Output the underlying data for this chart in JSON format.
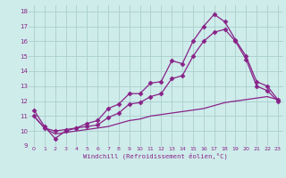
{
  "background_color": "#ceecea",
  "grid_color": "#aacfcd",
  "line_color": "#882288",
  "xlim": [
    -0.5,
    23.5
  ],
  "ylim": [
    9,
    18.4
  ],
  "xticks": [
    0,
    1,
    2,
    3,
    4,
    5,
    6,
    7,
    8,
    9,
    10,
    11,
    12,
    13,
    14,
    15,
    16,
    17,
    18,
    19,
    20,
    21,
    22,
    23
  ],
  "yticks": [
    9,
    10,
    11,
    12,
    13,
    14,
    15,
    16,
    17,
    18
  ],
  "xlabel": "Windchill (Refroidissement éolien,°C)",
  "line1_x": [
    0,
    1,
    2,
    3,
    4,
    5,
    6,
    7,
    8,
    9,
    10,
    11,
    12,
    13,
    14,
    15,
    16,
    17,
    18,
    19,
    20,
    21,
    22,
    23
  ],
  "line1_y": [
    11.4,
    10.3,
    9.5,
    10.0,
    10.2,
    10.5,
    10.7,
    11.5,
    11.8,
    12.5,
    12.5,
    13.2,
    13.3,
    14.7,
    14.5,
    16.0,
    17.0,
    17.8,
    17.3,
    16.1,
    15.0,
    13.3,
    13.0,
    12.1
  ],
  "line2_x": [
    0,
    1,
    2,
    3,
    4,
    5,
    6,
    7,
    8,
    9,
    10,
    11,
    12,
    13,
    14,
    15,
    16,
    17,
    18,
    19,
    20,
    21,
    22,
    23
  ],
  "line2_y": [
    11.0,
    10.2,
    10.0,
    10.1,
    10.2,
    10.3,
    10.4,
    10.9,
    11.2,
    11.8,
    11.9,
    12.3,
    12.5,
    13.5,
    13.7,
    15.0,
    16.0,
    16.6,
    16.8,
    16.0,
    14.8,
    13.0,
    12.7,
    12.0
  ],
  "line3_x": [
    0,
    1,
    2,
    3,
    4,
    5,
    6,
    7,
    8,
    9,
    10,
    11,
    12,
    13,
    14,
    15,
    16,
    17,
    18,
    19,
    20,
    21,
    22,
    23
  ],
  "line3_y": [
    11.0,
    10.2,
    9.8,
    9.9,
    10.0,
    10.1,
    10.2,
    10.3,
    10.5,
    10.7,
    10.8,
    11.0,
    11.1,
    11.2,
    11.3,
    11.4,
    11.5,
    11.7,
    11.9,
    12.0,
    12.1,
    12.2,
    12.3,
    12.1
  ]
}
